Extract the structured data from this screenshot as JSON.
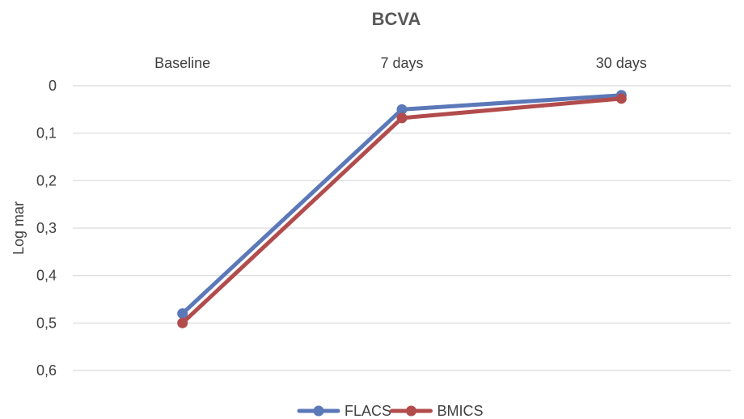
{
  "chart_data": {
    "type": "line",
    "title": "BCVA",
    "xlabel": "",
    "ylabel": "Log mar",
    "categories": [
      "Baseline",
      "7 days",
      "30 days"
    ],
    "ylim": [
      0,
      0.6
    ],
    "y_axis_inverted": true,
    "y_ticks": [
      "0",
      "0,1",
      "0,2",
      "0,3",
      "0,4",
      "0,5",
      "0,6"
    ],
    "x_axis_position": "top",
    "grid": true,
    "legend_position": "bottom",
    "series": [
      {
        "name": "FLACS",
        "values": [
          0.48,
          0.05,
          0.02
        ],
        "color": "#5b78b8"
      },
      {
        "name": "BMICS",
        "values": [
          0.5,
          0.068,
          0.027
        ],
        "color": "#b24c4c"
      }
    ]
  }
}
